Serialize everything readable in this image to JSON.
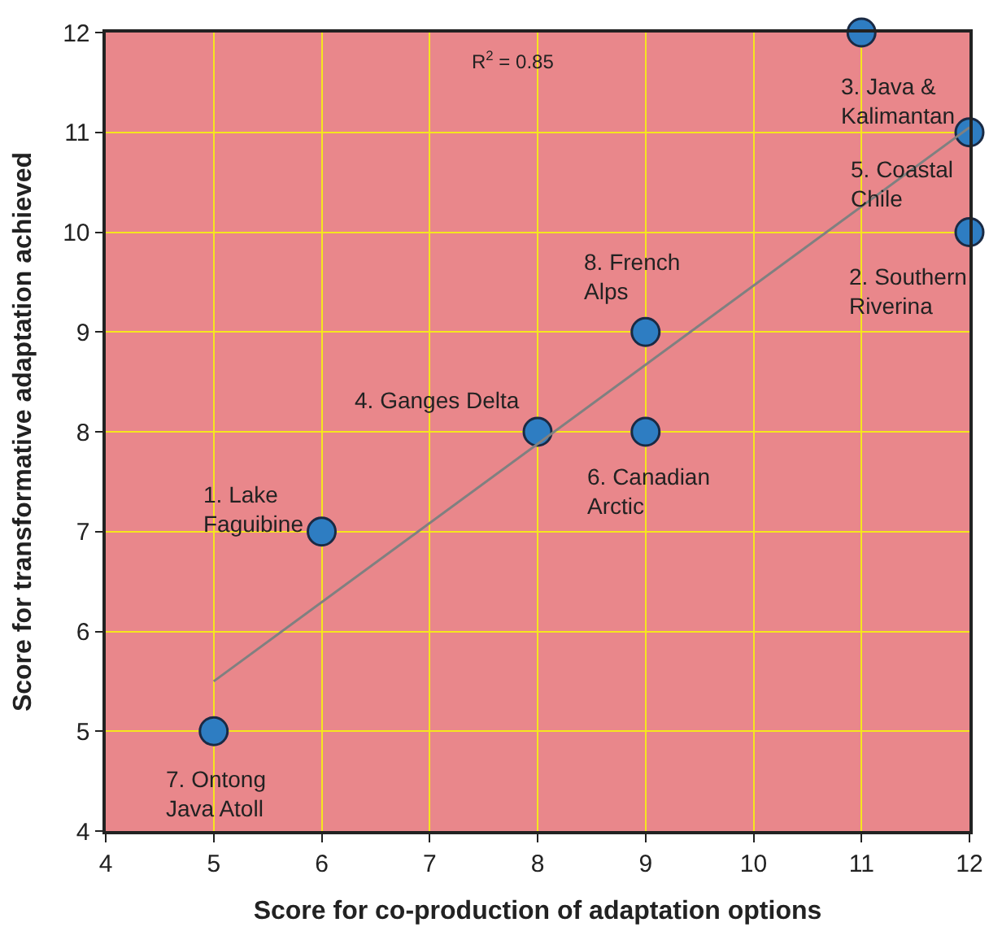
{
  "chart_data": {
    "type": "scatter",
    "xlabel": "Score for co-production of adaptation options",
    "ylabel": "Score for transformative adaptation achieved",
    "xlim": [
      4,
      12
    ],
    "ylim": [
      4,
      12
    ],
    "xticks": [
      4,
      5,
      6,
      7,
      8,
      9,
      10,
      11,
      12
    ],
    "yticks": [
      4,
      5,
      6,
      7,
      8,
      9,
      10,
      11,
      12
    ],
    "grid": true,
    "series": [
      {
        "type": "scatter",
        "color": "#2e7dc2",
        "marker": "circle",
        "x": [
          11,
          12,
          12,
          9,
          8,
          9,
          6,
          5
        ],
        "values": [
          12,
          11,
          10,
          9,
          8,
          8,
          7,
          5
        ]
      },
      {
        "type": "line",
        "color": "#808080",
        "marker": "none",
        "line_style": "solid",
        "x": [
          5,
          12
        ],
        "values": [
          5.5,
          11.05
        ]
      }
    ],
    "annotations": [
      {
        "text": "3. Java &\nKalimantan",
        "x": 11,
        "y": 12
      },
      {
        "text": "5. Coastal\nChile",
        "x": 12,
        "y": 11
      },
      {
        "text": "2. Southern\nRiverina",
        "x": 12,
        "y": 10
      },
      {
        "text": "8. French\nAlps",
        "x": 9,
        "y": 9
      },
      {
        "text": "4. Ganges Delta",
        "x": 8,
        "y": 8
      },
      {
        "text": "6. Canadian\nArctic",
        "x": 9,
        "y": 8
      },
      {
        "text": "1. Lake\nFaguibine",
        "x": 6,
        "y": 7
      },
      {
        "text": "7. Ontong\nJava Atoll",
        "x": 5,
        "y": 5
      },
      "R$^{2}$ = 0.85"
    ]
  }
}
